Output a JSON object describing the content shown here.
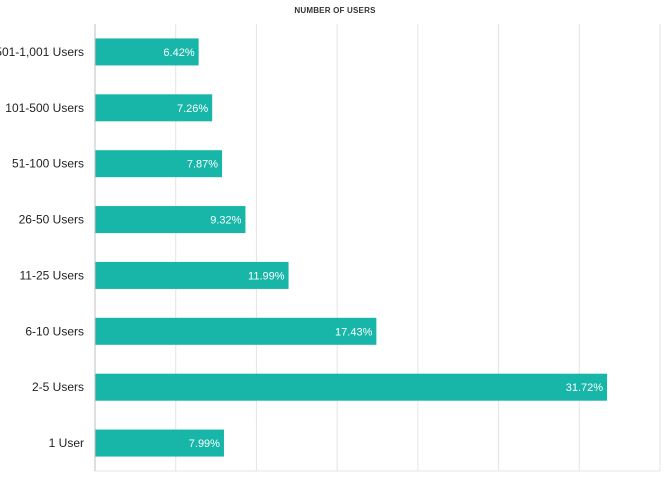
{
  "chart_data": {
    "type": "bar",
    "orientation": "horizontal",
    "title": "NUMBER OF USERS",
    "categories": [
      "501-1,001 Users",
      "101-500 Users",
      "51-100 Users",
      "26-50 Users",
      "11-25 Users",
      "6-10 Users",
      "2-5 Users",
      "1 User"
    ],
    "values": [
      6.42,
      7.26,
      7.87,
      9.32,
      11.99,
      17.43,
      31.72,
      7.99
    ],
    "data_labels": [
      "6.42%",
      "7.26%",
      "7.87%",
      "9.32%",
      "11.99%",
      "17.43%",
      "31.72%",
      "7.99%"
    ],
    "xlim": [
      0,
      35
    ],
    "x_gridline_step": 5,
    "grid": true,
    "legend": "none",
    "bar_color": "#17b6a8"
  }
}
